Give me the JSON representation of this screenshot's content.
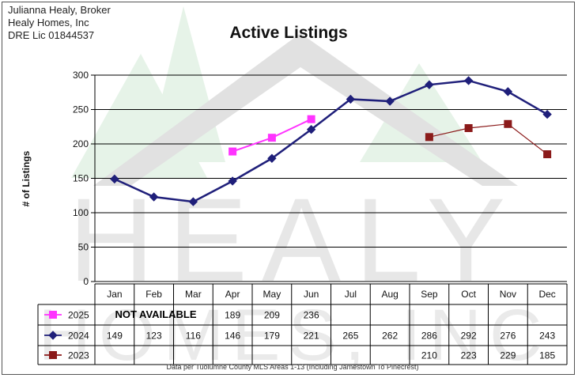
{
  "broker": {
    "line1": "Julianna Healy, Broker",
    "line2": "Healy Homes, Inc",
    "line3": "DRE Lic 01844537"
  },
  "watermark": {
    "line1": "HEALY",
    "line2": "HOMES, INC"
  },
  "footnote": "Data per Tuolumne County MLS Areas 1-13 (Including Jamestown To Pinecrest)",
  "not_available": "NOT AVAILABLE",
  "colors": {
    "2025": "#ff33ff",
    "2024": "#1f1f7a",
    "2023": "#8b1a1a",
    "gridline": "#000000"
  },
  "chart_data": {
    "type": "line",
    "title": "Active Listings",
    "ylabel": "# of Listings",
    "xlabel": "",
    "ylim": [
      0,
      300
    ],
    "yticks": [
      0,
      50,
      100,
      150,
      200,
      250,
      300
    ],
    "grid": true,
    "legend": "data-table-left",
    "categories": [
      "Jan",
      "Feb",
      "Mar",
      "Apr",
      "May",
      "Jun",
      "Jul",
      "Aug",
      "Sep",
      "Oct",
      "Nov",
      "Dec"
    ],
    "series": [
      {
        "name": "2025",
        "marker": "square",
        "values": [
          null,
          null,
          null,
          189,
          209,
          236,
          null,
          null,
          null,
          null,
          null,
          null
        ]
      },
      {
        "name": "2024",
        "marker": "diamond",
        "values": [
          149,
          123,
          116,
          146,
          179,
          221,
          265,
          262,
          286,
          292,
          276,
          243
        ]
      },
      {
        "name": "2023",
        "marker": "square",
        "values": [
          null,
          null,
          null,
          null,
          null,
          null,
          null,
          null,
          210,
          223,
          229,
          185
        ]
      }
    ]
  }
}
